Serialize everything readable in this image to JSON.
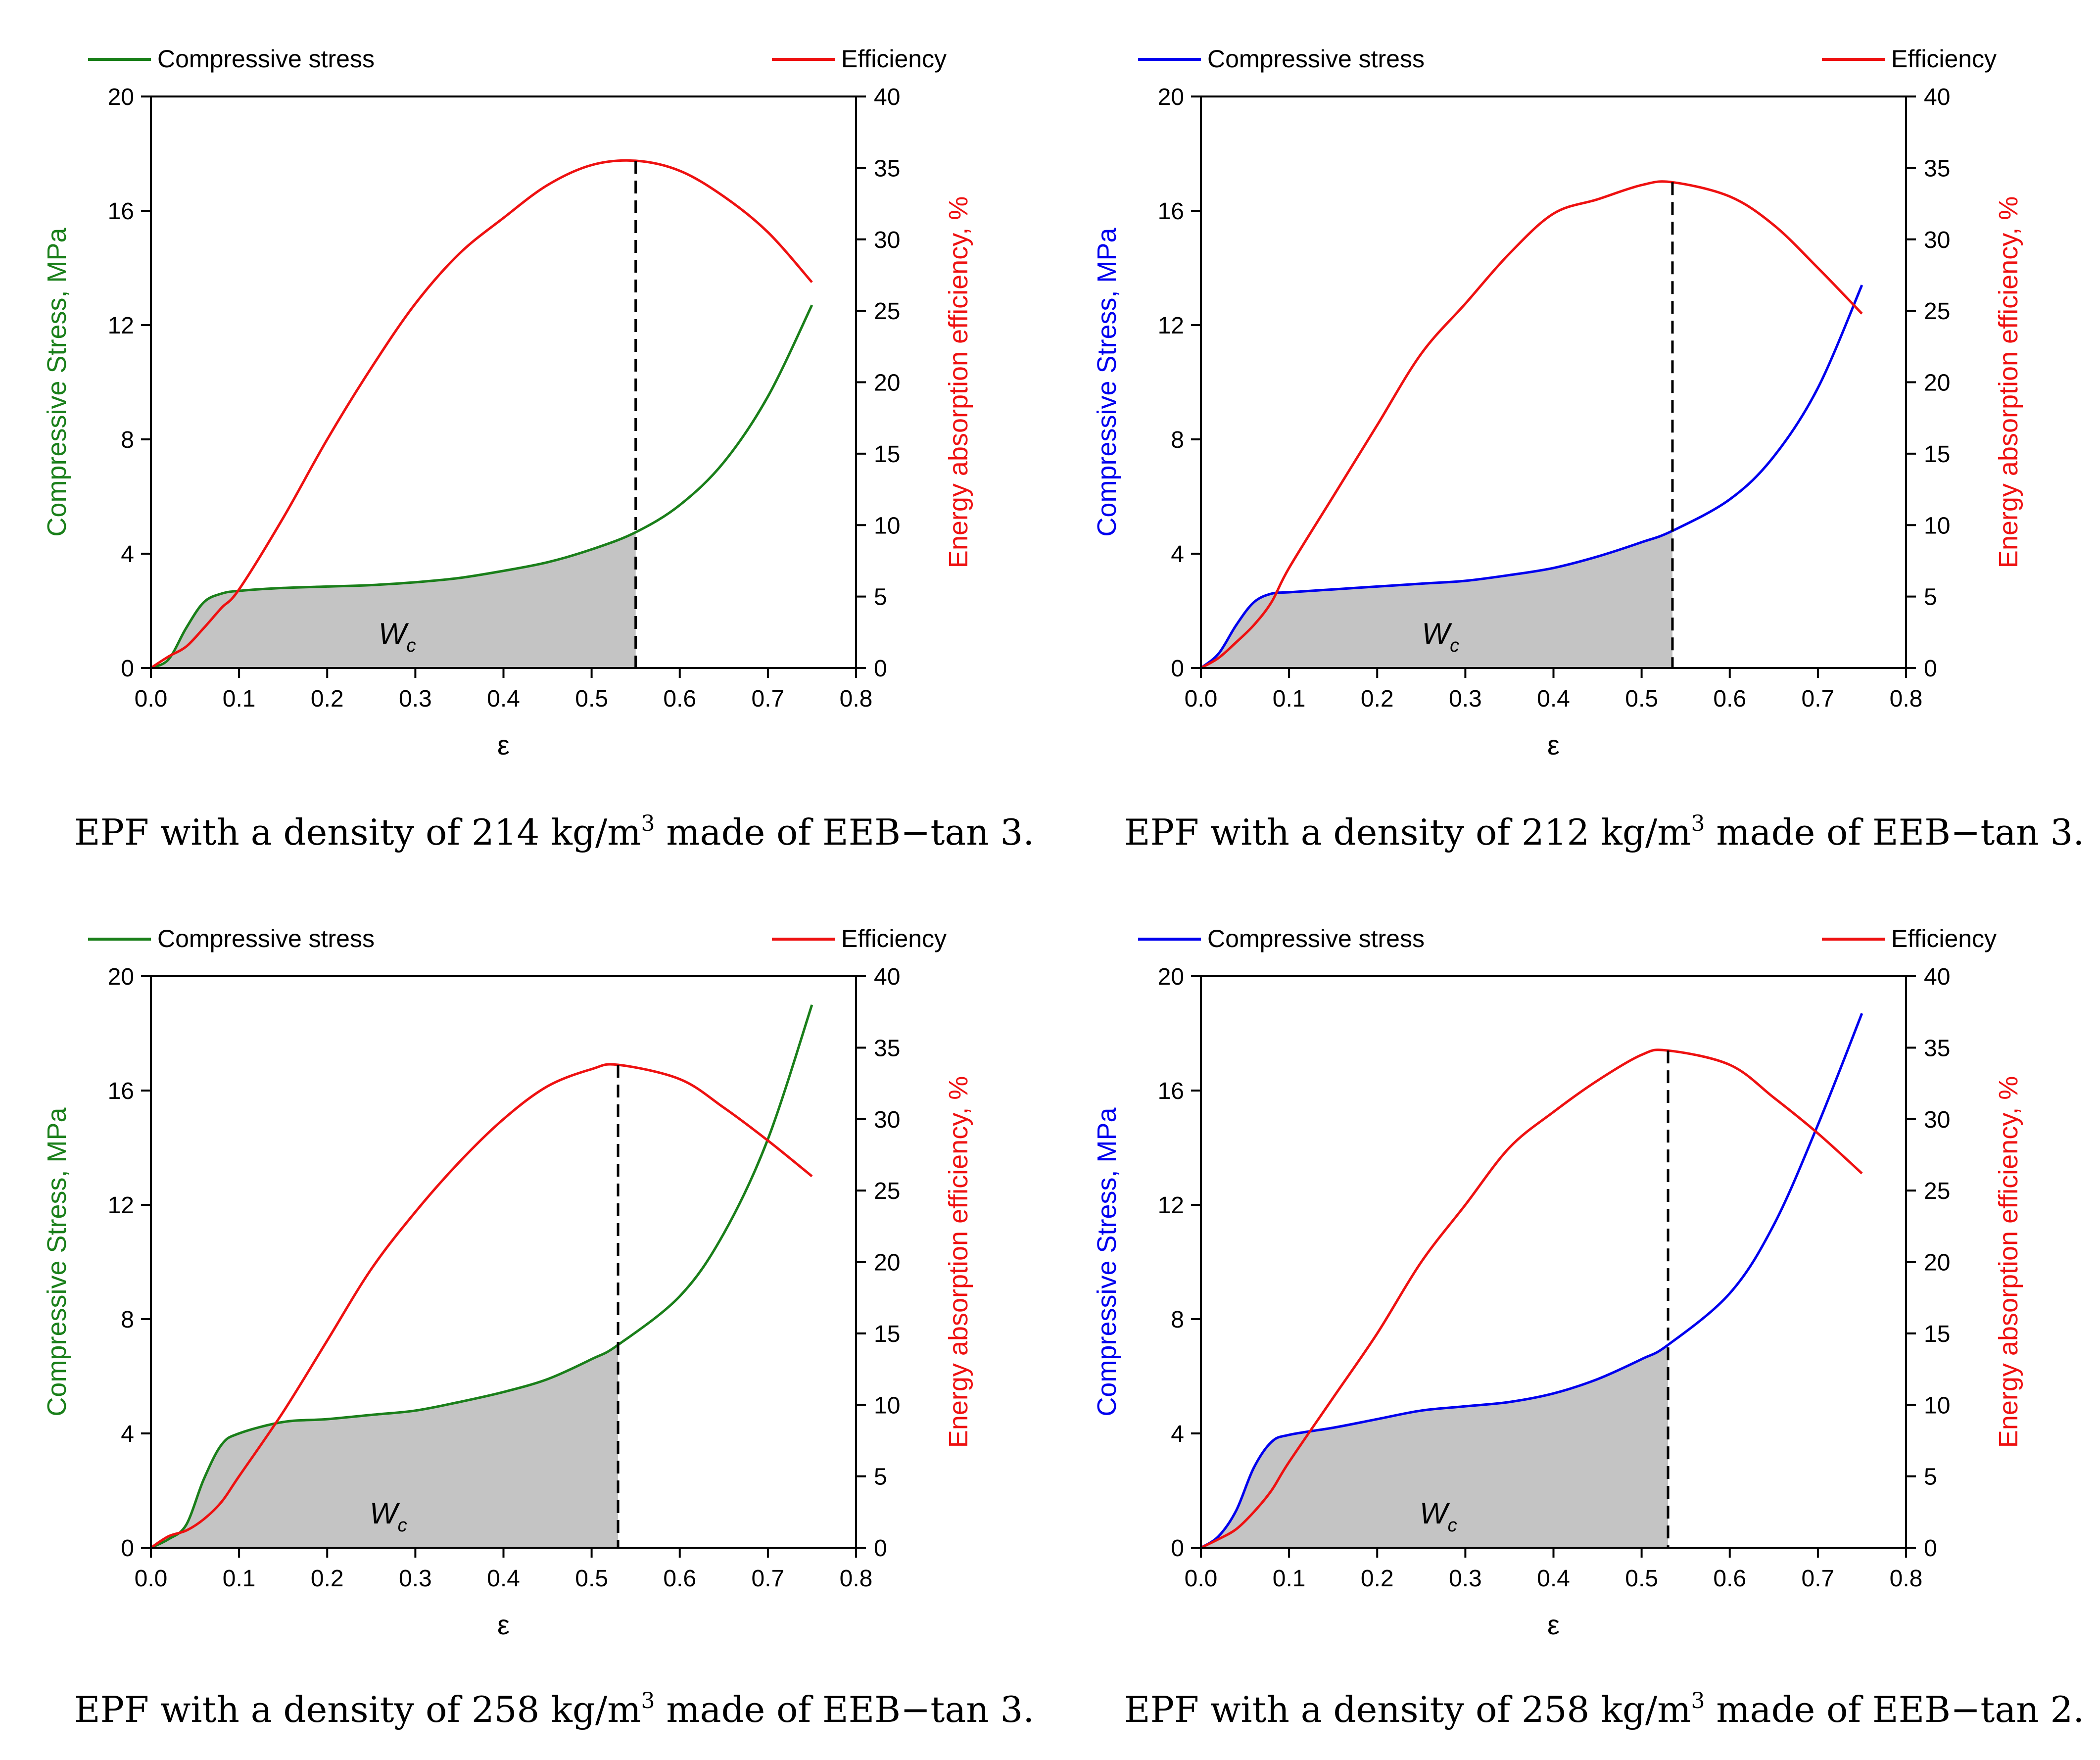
{
  "panels": [
    {
      "caption_pre": "EPF with a density of 214 kg/m",
      "caption_sup": "3",
      "caption_post": " made of EEB−tan 3.",
      "stress_color": "#1a7f1a",
      "stress_legend": "Compressive stress",
      "eff_legend": "Efficiency",
      "region_label": "W",
      "region_sub": "c"
    },
    {
      "caption_pre": "EPF with a density of 212 kg/m",
      "caption_sup": "3",
      "caption_post": " made of EEB−tan 3.",
      "stress_color": "#0000ee",
      "stress_legend": "Compressive stress",
      "eff_legend": "Efficiency",
      "region_label": "W",
      "region_sub": "c"
    },
    {
      "caption_pre": "EPF with a density of 258 kg/m",
      "caption_sup": "3",
      "caption_post": " made of EEB−tan 3.",
      "stress_color": "#1a7f1a",
      "stress_legend": "Compressive stress",
      "eff_legend": "Efficiency",
      "region_label": "W",
      "region_sub": "c"
    },
    {
      "caption_pre": "EPF with a density of 258 kg/m",
      "caption_sup": "3",
      "caption_post": " made of EEB−tan 2.",
      "stress_color": "#0000ee",
      "stress_legend": "Compressive stress",
      "eff_legend": "Efficiency",
      "region_label": "W",
      "region_sub": "c"
    }
  ],
  "chart_data": [
    {
      "type": "line",
      "title": "EPF with a density of 214 kg/m3 made of EEB−tan 3.",
      "xlabel": "ε",
      "ylabel": "Compressive Stress, MPa",
      "y2label": "Energy absorption efficiency, %",
      "xlim": [
        0.0,
        0.8
      ],
      "ylim": [
        0,
        20
      ],
      "y2lim": [
        0,
        40
      ],
      "xticks": [
        "0.0",
        "0.1",
        "0.2",
        "0.3",
        "0.4",
        "0.5",
        "0.6",
        "0.7",
        "0.8"
      ],
      "yticks": [
        "0",
        "4",
        "8",
        "12",
        "16",
        "20"
      ],
      "y2ticks": [
        "0",
        "5",
        "10",
        "15",
        "20",
        "25",
        "30",
        "35",
        "40"
      ],
      "shaded_region_x_max": 0.55,
      "dashed_line_x": 0.55,
      "series": [
        {
          "name": "Compressive stress",
          "axis": "left",
          "x": [
            0.0,
            0.02,
            0.04,
            0.06,
            0.08,
            0.1,
            0.15,
            0.2,
            0.25,
            0.3,
            0.35,
            0.4,
            0.45,
            0.5,
            0.55,
            0.6,
            0.65,
            0.7,
            0.75
          ],
          "y": [
            0,
            0.3,
            1.4,
            2.3,
            2.6,
            2.7,
            2.8,
            2.85,
            2.9,
            3.0,
            3.15,
            3.4,
            3.7,
            4.15,
            4.75,
            5.7,
            7.2,
            9.5,
            12.7
          ]
        },
        {
          "name": "Efficiency",
          "axis": "right",
          "x": [
            0.0,
            0.02,
            0.04,
            0.06,
            0.08,
            0.1,
            0.15,
            0.2,
            0.25,
            0.3,
            0.35,
            0.4,
            0.45,
            0.5,
            0.55,
            0.6,
            0.65,
            0.7,
            0.75
          ],
          "y": [
            0,
            0.8,
            1.5,
            2.8,
            4.2,
            5.5,
            10.5,
            16,
            21,
            25.5,
            29,
            31.5,
            33.8,
            35.2,
            35.5,
            34.8,
            33,
            30.5,
            27
          ]
        }
      ]
    },
    {
      "type": "line",
      "title": "EPF with a density of 212 kg/m3 made of EEB−tan 3.",
      "xlabel": "ε",
      "ylabel": "Compressive Stress, MPa",
      "y2label": "Energy absorption efficiency, %",
      "xlim": [
        0.0,
        0.8
      ],
      "ylim": [
        0,
        20
      ],
      "y2lim": [
        0,
        40
      ],
      "xticks": [
        "0.0",
        "0.1",
        "0.2",
        "0.3",
        "0.4",
        "0.5",
        "0.6",
        "0.7",
        "0.8"
      ],
      "yticks": [
        "0",
        "4",
        "8",
        "12",
        "16",
        "20"
      ],
      "y2ticks": [
        "0",
        "5",
        "10",
        "15",
        "20",
        "25",
        "30",
        "35",
        "40"
      ],
      "shaded_region_x_max": 0.535,
      "dashed_line_x": 0.535,
      "series": [
        {
          "name": "Compressive stress",
          "axis": "left",
          "x": [
            0.0,
            0.02,
            0.04,
            0.06,
            0.08,
            0.1,
            0.15,
            0.2,
            0.25,
            0.3,
            0.35,
            0.4,
            0.45,
            0.5,
            0.535,
            0.6,
            0.65,
            0.7,
            0.75
          ],
          "y": [
            0,
            0.5,
            1.5,
            2.3,
            2.6,
            2.65,
            2.75,
            2.85,
            2.95,
            3.05,
            3.25,
            3.5,
            3.9,
            4.4,
            4.8,
            5.9,
            7.4,
            9.8,
            13.4
          ]
        },
        {
          "name": "Efficiency",
          "axis": "right",
          "x": [
            0.0,
            0.02,
            0.04,
            0.06,
            0.08,
            0.1,
            0.15,
            0.2,
            0.25,
            0.3,
            0.35,
            0.4,
            0.45,
            0.5,
            0.535,
            0.6,
            0.65,
            0.7,
            0.75
          ],
          "y": [
            0,
            0.7,
            1.8,
            3,
            4.6,
            7,
            12,
            17,
            22,
            25.5,
            29,
            31.8,
            32.8,
            33.8,
            34,
            33,
            31,
            28,
            24.8
          ]
        }
      ]
    },
    {
      "type": "line",
      "title": "EPF with a density of 258 kg/m3 made of EEB−tan 3.",
      "xlabel": "ε",
      "ylabel": "Compressive Stress, MPa",
      "y2label": "Energy absorption efficiency, %",
      "xlim": [
        0.0,
        0.8
      ],
      "ylim": [
        0,
        20
      ],
      "y2lim": [
        0,
        40
      ],
      "xticks": [
        "0.0",
        "0.1",
        "0.2",
        "0.3",
        "0.4",
        "0.5",
        "0.6",
        "0.7",
        "0.8"
      ],
      "yticks": [
        "0",
        "4",
        "8",
        "12",
        "16",
        "20"
      ],
      "y2ticks": [
        "0",
        "5",
        "10",
        "15",
        "20",
        "25",
        "30",
        "35",
        "40"
      ],
      "shaded_region_x_max": 0.53,
      "dashed_line_x": 0.53,
      "series": [
        {
          "name": "Compressive stress",
          "axis": "left",
          "x": [
            0.0,
            0.02,
            0.04,
            0.06,
            0.08,
            0.1,
            0.15,
            0.2,
            0.25,
            0.3,
            0.35,
            0.4,
            0.45,
            0.5,
            0.53,
            0.6,
            0.65,
            0.7,
            0.75
          ],
          "y": [
            0,
            0.3,
            0.8,
            2.4,
            3.6,
            4.0,
            4.4,
            4.5,
            4.65,
            4.8,
            5.1,
            5.45,
            5.9,
            6.6,
            7.1,
            8.8,
            11,
            14.3,
            19
          ]
        },
        {
          "name": "Efficiency",
          "axis": "right",
          "x": [
            0.0,
            0.02,
            0.04,
            0.06,
            0.08,
            0.1,
            0.15,
            0.2,
            0.25,
            0.3,
            0.35,
            0.4,
            0.45,
            0.5,
            0.53,
            0.6,
            0.65,
            0.7,
            0.75
          ],
          "y": [
            0,
            0.8,
            1.2,
            2,
            3.2,
            5,
            9.5,
            14.5,
            19.5,
            23.5,
            27,
            30,
            32.3,
            33.5,
            33.8,
            32.8,
            30.8,
            28.5,
            26
          ]
        }
      ]
    },
    {
      "type": "line",
      "title": "EPF with a density of 258 kg/m3 made of EEB−tan 2.",
      "xlabel": "ε",
      "ylabel": "Compressive Stress, MPa",
      "y2label": "Energy absorption efficiency, %",
      "xlim": [
        0.0,
        0.8
      ],
      "ylim": [
        0,
        20
      ],
      "y2lim": [
        0,
        40
      ],
      "xticks": [
        "0.0",
        "0.1",
        "0.2",
        "0.3",
        "0.4",
        "0.5",
        "0.6",
        "0.7",
        "0.8"
      ],
      "yticks": [
        "0",
        "4",
        "8",
        "12",
        "16",
        "20"
      ],
      "y2ticks": [
        "0",
        "5",
        "10",
        "15",
        "20",
        "25",
        "30",
        "35",
        "40"
      ],
      "shaded_region_x_max": 0.53,
      "dashed_line_x": 0.53,
      "series": [
        {
          "name": "Compressive stress",
          "axis": "left",
          "x": [
            0.0,
            0.02,
            0.04,
            0.06,
            0.08,
            0.1,
            0.15,
            0.2,
            0.25,
            0.3,
            0.35,
            0.4,
            0.45,
            0.5,
            0.53,
            0.6,
            0.65,
            0.7,
            0.75
          ],
          "y": [
            0,
            0.4,
            1.3,
            2.8,
            3.7,
            3.95,
            4.2,
            4.5,
            4.8,
            4.95,
            5.1,
            5.4,
            5.9,
            6.6,
            7.1,
            8.9,
            11.3,
            14.8,
            18.7
          ]
        },
        {
          "name": "Efficiency",
          "axis": "right",
          "x": [
            0.0,
            0.02,
            0.04,
            0.06,
            0.08,
            0.1,
            0.15,
            0.2,
            0.25,
            0.3,
            0.35,
            0.4,
            0.45,
            0.5,
            0.53,
            0.6,
            0.65,
            0.7,
            0.75
          ],
          "y": [
            0,
            0.6,
            1.3,
            2.5,
            4,
            6,
            10.5,
            15,
            20,
            24,
            28,
            30.5,
            32.7,
            34.5,
            34.8,
            33.8,
            31.5,
            29,
            26.2
          ]
        }
      ]
    }
  ]
}
